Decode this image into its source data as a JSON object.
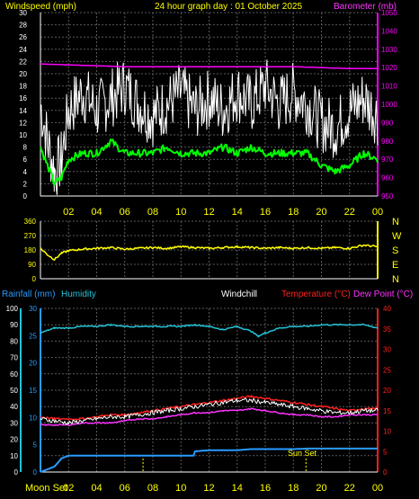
{
  "header": {
    "windspeed_label": "Windspeed (mph)",
    "date_title": "24 hour graph day : 01 October 2025",
    "barometer_label": "Barometer (mb)"
  },
  "colors": {
    "background": "#000000",
    "grid": "#5a5a5a",
    "wind_gust": "#ffffff",
    "wind_avg": "#00ff00",
    "barometer": "#ff00ff",
    "wind_dir": "#ffff00",
    "rain_axis": "#2a9bff",
    "humidity": "#22c4d8",
    "temperature": "#ff2020",
    "dewpoint": "#ff33ff",
    "windchill": "#ffffff",
    "label_yellow": "#ffff00",
    "label_red": "#ff2020"
  },
  "x_axis_labels": [
    "02",
    "04",
    "06",
    "08",
    "10",
    "12",
    "14",
    "16",
    "18",
    "20",
    "22",
    "00"
  ],
  "panel3_labels": {
    "rainfall": "Rainfall (mm)",
    "humidity": "Humidity",
    "windchill": "Windchill",
    "temperature": "Temperature (°C)",
    "dewpoint": "Dew Point (°C)",
    "moon_set": "Moon Set",
    "sun_set": "Sun Set"
  },
  "chart_data": [
    {
      "type": "line",
      "x_range_hours": [
        0,
        24
      ],
      "x_tick_labels": [
        "02",
        "04",
        "06",
        "08",
        "10",
        "12",
        "14",
        "16",
        "18",
        "20",
        "22",
        "00"
      ],
      "left_axis": {
        "ylim": [
          0,
          30
        ],
        "ticks": [
          0,
          2,
          4,
          6,
          8,
          10,
          12,
          14,
          16,
          18,
          20,
          22,
          24,
          26,
          28,
          30
        ]
      },
      "right_axis": {
        "ylim": [
          950,
          1050
        ],
        "ticks": [
          950,
          960,
          970,
          980,
          990,
          1000,
          1010,
          1020,
          1030,
          1040,
          1050
        ]
      },
      "grid": true,
      "series": [
        {
          "name": "Windspeed (mph)",
          "axis": "left",
          "x": [
            0,
            0.5,
            1,
            1.5,
            2,
            3,
            4,
            5,
            6,
            7,
            8,
            9,
            10,
            11,
            12,
            13,
            14,
            15,
            16,
            17,
            18,
            19,
            20,
            21,
            22,
            23,
            24
          ],
          "values": [
            15,
            9,
            4,
            6,
            14,
            17,
            14,
            16,
            18,
            15,
            13,
            15,
            17,
            14,
            16,
            14,
            17,
            15,
            18,
            15,
            17,
            15,
            12,
            11,
            14,
            16,
            13
          ]
        },
        {
          "name": "Barometer (mb)",
          "axis": "right",
          "x": [
            0,
            2,
            4,
            6,
            8,
            10,
            12,
            14,
            16,
            18,
            20,
            22,
            24
          ],
          "values": [
            1022,
            1021.5,
            1021,
            1020.5,
            1020.5,
            1020.5,
            1020.5,
            1020.5,
            1020.5,
            1020.5,
            1020,
            1019.5,
            1019.5
          ]
        },
        {
          "x": [
            0,
            0.5,
            1,
            1.5,
            2,
            3,
            4,
            5,
            6,
            7,
            8,
            9,
            10,
            11,
            12,
            13,
            14,
            15,
            16,
            17,
            18,
            19,
            20,
            21,
            22,
            23,
            24
          ],
          "values": [
            8,
            5,
            2,
            3,
            6,
            7,
            7,
            9,
            7,
            7,
            7,
            8,
            7,
            7,
            7,
            8,
            7,
            8,
            7,
            7,
            7,
            7,
            5,
            4,
            5,
            7,
            6
          ]
        }
      ]
    },
    {
      "type": "line",
      "x_range_hours": [
        0,
        24
      ],
      "left_axis": {
        "ylim": [
          0,
          360
        ],
        "ticks": [
          0,
          90,
          180,
          270,
          360
        ]
      },
      "right_axis_labels": [
        "N",
        "W",
        "S",
        "E",
        "N"
      ],
      "grid": true,
      "series": [
        {
          "x": [
            0,
            0.5,
            1,
            1.5,
            2,
            3,
            4,
            5,
            6,
            7,
            8,
            9,
            10,
            11,
            12,
            13,
            14,
            15,
            16,
            17,
            18,
            19,
            20,
            21,
            22,
            23,
            24
          ],
          "values": [
            190,
            150,
            120,
            160,
            175,
            185,
            190,
            195,
            185,
            190,
            195,
            190,
            200,
            195,
            190,
            195,
            200,
            195,
            190,
            195,
            190,
            195,
            190,
            195,
            190,
            210,
            200
          ]
        }
      ]
    },
    {
      "type": "line",
      "x_range_hours": [
        0,
        24
      ],
      "left_axis_outer": {
        "ylim": [
          0,
          100
        ],
        "ticks": [
          0,
          10,
          20,
          30,
          40,
          50,
          60,
          70,
          80,
          90,
          100
        ]
      },
      "left_axis_inner": {
        "ylim": [
          0,
          30
        ],
        "ticks": [
          0,
          5,
          10,
          15,
          20,
          25,
          30
        ]
      },
      "right_axis": {
        "ylim": [
          0,
          40
        ],
        "ticks": [
          0,
          5,
          10,
          15,
          20,
          25,
          30,
          35,
          40
        ]
      },
      "grid": true,
      "series": [
        {
          "name": "Humidity",
          "axis": "left_outer",
          "x": [
            0,
            1,
            2,
            3,
            4,
            5,
            6,
            7,
            8,
            9,
            10,
            11,
            12,
            13,
            14,
            15,
            15.5,
            16,
            17,
            18,
            19,
            20,
            21,
            22,
            23,
            24
          ],
          "values": [
            85,
            88,
            88,
            89,
            89,
            90,
            89,
            89,
            89,
            89,
            89,
            90,
            89,
            87,
            89,
            86,
            83,
            85,
            88,
            89,
            89,
            90,
            90,
            90,
            90,
            88
          ]
        },
        {
          "name": "Temperature (°C)",
          "axis": "right",
          "x": [
            0,
            1,
            2,
            3,
            4,
            5,
            6,
            7,
            8,
            9,
            10,
            11,
            12,
            13,
            14,
            15,
            16,
            17,
            18,
            19,
            20,
            21,
            22,
            23,
            24
          ],
          "values": [
            13.5,
            13,
            13,
            13,
            13.5,
            14,
            14,
            14.5,
            15,
            15.5,
            16,
            16.5,
            17,
            17.5,
            18,
            18.5,
            18,
            17.5,
            17,
            16.5,
            16,
            15.5,
            15,
            15.5,
            15.5
          ]
        },
        {
          "name": "Dew Point (°C)",
          "axis": "right",
          "x": [
            0,
            1,
            2,
            3,
            4,
            5,
            6,
            7,
            8,
            9,
            10,
            11,
            12,
            13,
            14,
            15,
            16,
            17,
            18,
            19,
            20,
            21,
            22,
            23,
            24
          ],
          "values": [
            11.5,
            11.5,
            11.5,
            12,
            12,
            12,
            12.5,
            13,
            13,
            13.5,
            14,
            14.5,
            14.5,
            15,
            15,
            15.5,
            15,
            14.5,
            14,
            14,
            13.5,
            13.5,
            14,
            14,
            14
          ]
        },
        {
          "name": "Windchill",
          "axis": "right",
          "x": [
            0,
            1,
            2,
            3,
            4,
            5,
            6,
            7,
            8,
            9,
            10,
            11,
            12,
            13,
            14,
            15,
            16,
            17,
            18,
            19,
            20,
            21,
            22,
            23,
            24
          ],
          "values": [
            13,
            12.5,
            12,
            12.5,
            13,
            13.5,
            13.5,
            14,
            14.5,
            15,
            15.5,
            16,
            16.5,
            17,
            17.5,
            17.5,
            17,
            16.5,
            16,
            15.5,
            15,
            14.5,
            14.5,
            15,
            15
          ]
        },
        {
          "name": "Rainfall (mm)",
          "axis": "left_inner",
          "x": [
            0,
            1,
            1.5,
            2,
            3,
            4,
            5,
            6,
            7,
            8,
            9,
            10,
            10.9,
            11,
            12,
            13,
            14,
            15,
            16,
            17,
            18,
            19,
            20,
            21,
            22,
            23,
            24
          ],
          "values": [
            0,
            1,
            2.5,
            3,
            3,
            3,
            3,
            3,
            3,
            3,
            3,
            3,
            3,
            3.8,
            4,
            4,
            4,
            4.2,
            4.2,
            4.2,
            4.2,
            4.3,
            4.3,
            4.3,
            4.3,
            4.3,
            4.3
          ]
        }
      ],
      "markers": [
        {
          "label": "Moon Set",
          "hour": 7.3
        },
        {
          "label": "Sun Set",
          "hour": 18.9
        }
      ]
    }
  ]
}
